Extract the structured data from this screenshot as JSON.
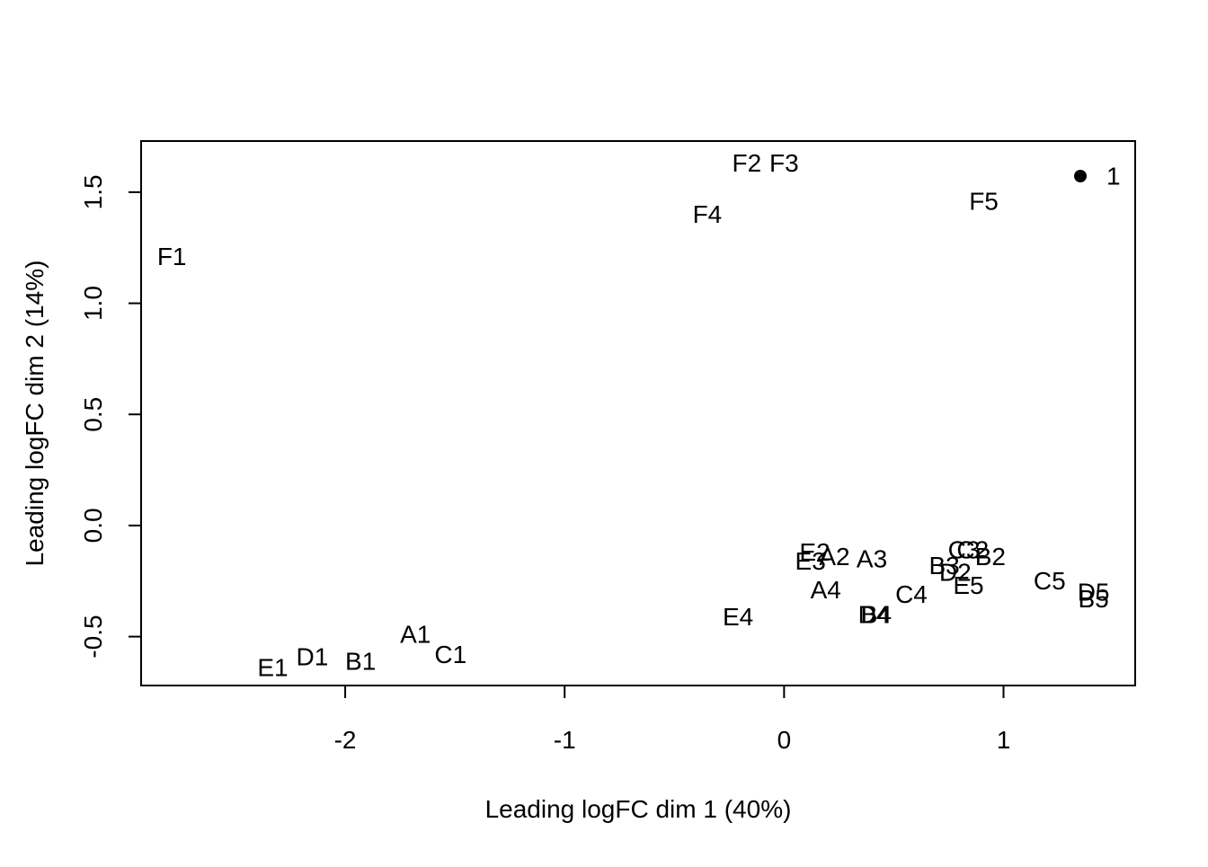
{
  "chart_data": {
    "type": "scatter",
    "title": "",
    "xlabel": "Leading logFC dim 1 (40%)",
    "ylabel": "Leading logFC dim 2 (14%)",
    "xlim": [
      -2.93,
      1.6
    ],
    "ylim": [
      -0.72,
      1.73
    ],
    "x_ticks": [
      -2,
      -1,
      0,
      1
    ],
    "x_tick_labels": [
      "-2",
      "-1",
      "0",
      "1"
    ],
    "y_ticks": [
      -0.5,
      0.0,
      0.5,
      1.0,
      1.5
    ],
    "y_tick_labels": [
      "-0.5",
      "0.0",
      "0.5",
      "1.0",
      "1.5"
    ],
    "grid": false,
    "legend": {
      "position": "top-right",
      "entries": [
        {
          "marker": "filled-circle",
          "label": "1",
          "color": "#000000"
        }
      ]
    },
    "points": [
      {
        "label": "F1",
        "x": -2.79,
        "y": 1.21
      },
      {
        "label": "F2",
        "x": -0.17,
        "y": 1.63
      },
      {
        "label": "F3",
        "x": 0.0,
        "y": 1.63
      },
      {
        "label": "F4",
        "x": -0.35,
        "y": 1.4
      },
      {
        "label": "F5",
        "x": 0.91,
        "y": 1.46
      },
      {
        "label": "E1",
        "x": -2.33,
        "y": -0.64
      },
      {
        "label": "D1",
        "x": -2.15,
        "y": -0.59
      },
      {
        "label": "B1",
        "x": -1.93,
        "y": -0.61
      },
      {
        "label": "A1",
        "x": -1.68,
        "y": -0.49
      },
      {
        "label": "C1",
        "x": -1.52,
        "y": -0.58
      },
      {
        "label": "E4",
        "x": -0.21,
        "y": -0.41
      },
      {
        "label": "A4",
        "x": 0.19,
        "y": -0.29
      },
      {
        "label": "D4",
        "x": 0.41,
        "y": -0.4
      },
      {
        "label": "B4",
        "x": 0.42,
        "y": -0.4
      },
      {
        "label": "C4",
        "x": 0.58,
        "y": -0.31
      },
      {
        "label": "E2",
        "x": 0.14,
        "y": -0.12
      },
      {
        "label": "E3",
        "x": 0.12,
        "y": -0.16
      },
      {
        "label": "A2",
        "x": 0.23,
        "y": -0.14
      },
      {
        "label": "A3",
        "x": 0.4,
        "y": -0.15
      },
      {
        "label": "B3",
        "x": 0.73,
        "y": -0.18
      },
      {
        "label": "D2",
        "x": 0.78,
        "y": -0.21
      },
      {
        "label": "E5",
        "x": 0.84,
        "y": -0.27
      },
      {
        "label": "C3",
        "x": 0.82,
        "y": -0.11
      },
      {
        "label": "C2",
        "x": 0.86,
        "y": -0.11
      },
      {
        "label": "B2",
        "x": 0.94,
        "y": -0.14
      },
      {
        "label": "C5",
        "x": 1.21,
        "y": -0.25
      },
      {
        "label": "D5",
        "x": 1.41,
        "y": -0.3
      },
      {
        "label": "B5",
        "x": 1.41,
        "y": -0.33
      }
    ]
  }
}
